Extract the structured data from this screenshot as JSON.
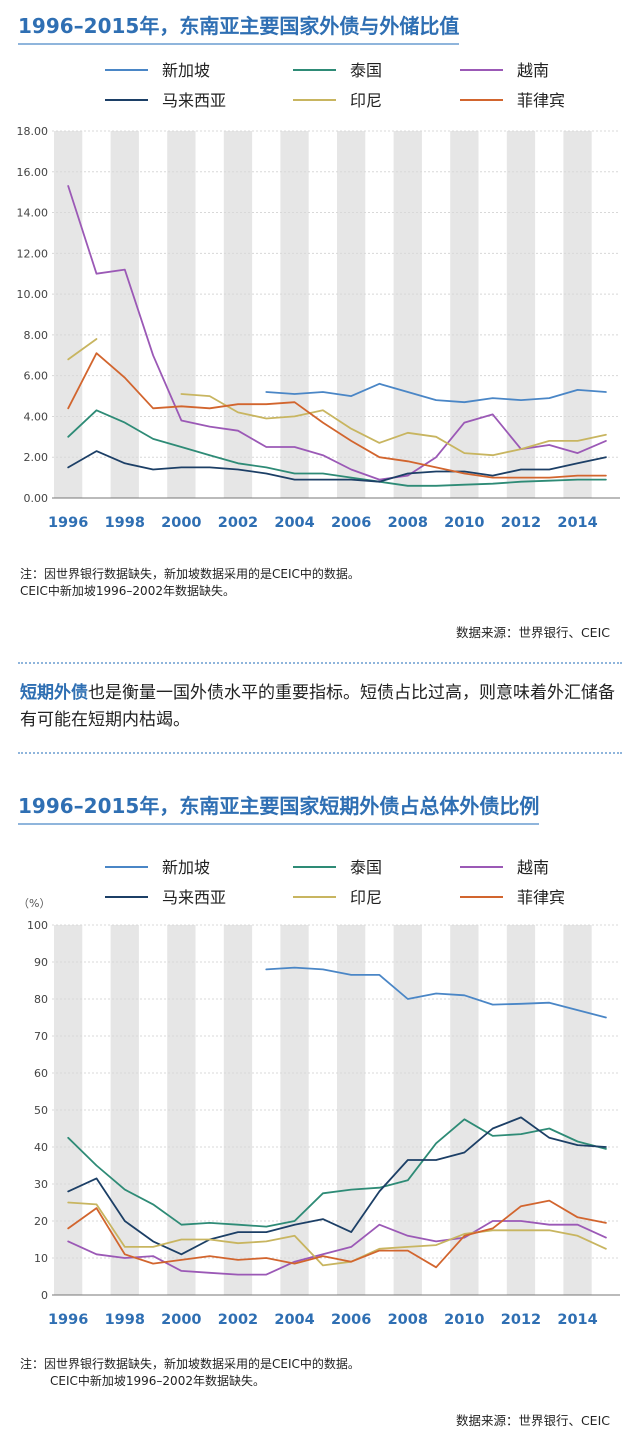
{
  "chart_data": [
    {
      "type": "line",
      "title": "1996-2015年，东南亚主要国家外债与外储比值",
      "x": [
        1996,
        1997,
        1998,
        1999,
        2000,
        2001,
        2002,
        2003,
        2004,
        2005,
        2006,
        2007,
        2008,
        2009,
        2010,
        2011,
        2012,
        2013,
        2014,
        2015
      ],
      "xticks": [
        "1996",
        "1998",
        "2000",
        "2002",
        "2004",
        "2006",
        "2008",
        "2010",
        "2012",
        "2014"
      ],
      "yticks": [
        "0.00",
        "2.00",
        "4.00",
        "6.00",
        "8.00",
        "10.00",
        "12.00",
        "14.00",
        "16.00",
        "18.00"
      ],
      "ylim": [
        0,
        18
      ],
      "ylabel": "",
      "series": [
        {
          "name": "新加坡",
          "color": "#4a86c6",
          "values": [
            null,
            null,
            null,
            null,
            null,
            null,
            null,
            5.2,
            5.1,
            5.2,
            5.0,
            5.6,
            5.2,
            4.8,
            4.7,
            4.9,
            4.8,
            4.9,
            5.3,
            5.2
          ]
        },
        {
          "name": "泰国",
          "color": "#2e8b76",
          "values": [
            3.0,
            4.3,
            3.7,
            2.9,
            2.5,
            2.1,
            1.7,
            1.5,
            1.2,
            1.2,
            1.0,
            0.8,
            0.6,
            0.6,
            0.65,
            0.7,
            0.8,
            0.85,
            0.9,
            0.9
          ]
        },
        {
          "name": "越南",
          "color": "#9b59b6",
          "values": [
            15.3,
            11.0,
            11.2,
            7.0,
            3.8,
            3.5,
            3.3,
            2.5,
            2.5,
            2.1,
            1.4,
            0.9,
            1.1,
            2.0,
            3.7,
            4.1,
            2.4,
            2.6,
            2.2,
            2.8
          ]
        },
        {
          "name": "马来西亚",
          "color": "#1c3f66",
          "values": [
            1.5,
            2.3,
            1.7,
            1.4,
            1.5,
            1.5,
            1.4,
            1.2,
            0.9,
            0.9,
            0.9,
            0.8,
            1.2,
            1.3,
            1.3,
            1.1,
            1.4,
            1.4,
            1.7,
            2.0
          ]
        },
        {
          "name": "印尼",
          "color": "#c8b560",
          "values": [
            6.8,
            7.8,
            null,
            null,
            5.1,
            5.0,
            4.2,
            3.9,
            4.0,
            4.3,
            3.4,
            2.7,
            3.2,
            3.0,
            2.2,
            2.1,
            2.4,
            2.8,
            2.8,
            3.1
          ]
        },
        {
          "name": "菲律宾",
          "color": "#d2652e",
          "values": [
            4.4,
            7.1,
            5.9,
            4.4,
            4.5,
            4.4,
            4.6,
            4.6,
            4.7,
            3.7,
            2.8,
            2.0,
            1.8,
            1.5,
            1.2,
            1.0,
            1.0,
            1.0,
            1.1,
            1.1
          ]
        }
      ]
    },
    {
      "type": "line",
      "title": "1996-2015年，东南亚主要国家短期外债占总体外债比例",
      "x": [
        1996,
        1997,
        1998,
        1999,
        2000,
        2001,
        2002,
        2003,
        2004,
        2005,
        2006,
        2007,
        2008,
        2009,
        2010,
        2011,
        2012,
        2013,
        2014,
        2015
      ],
      "xticks": [
        "1996",
        "1998",
        "2000",
        "2002",
        "2004",
        "2006",
        "2008",
        "2010",
        "2012",
        "2014"
      ],
      "yticks": [
        "0",
        "10",
        "20",
        "30",
        "40",
        "50",
        "60",
        "70",
        "80",
        "90",
        "100"
      ],
      "ylim": [
        0,
        100
      ],
      "ylabel": "（%）",
      "series": [
        {
          "name": "新加坡",
          "color": "#4a86c6",
          "values": [
            null,
            null,
            null,
            null,
            null,
            null,
            null,
            88,
            88.5,
            88,
            86.5,
            86.5,
            80,
            81.5,
            81,
            78.5,
            78.7,
            79,
            77,
            75
          ]
        },
        {
          "name": "泰国",
          "color": "#2e8b76",
          "values": [
            42.5,
            35,
            28.5,
            24.5,
            19,
            19.5,
            19,
            18.5,
            20,
            27.5,
            28.5,
            29,
            31,
            41,
            47.5,
            43,
            43.5,
            45,
            41.5,
            39.5
          ]
        },
        {
          "name": "越南",
          "color": "#9b59b6",
          "values": [
            14.5,
            11,
            10,
            10.5,
            6.5,
            6,
            5.5,
            5.5,
            9,
            11,
            13,
            19,
            16,
            14.5,
            15.5,
            20,
            20,
            19,
            19,
            15.5
          ]
        },
        {
          "name": "马来西亚",
          "color": "#1c3f66",
          "values": [
            28,
            31.5,
            20,
            14.5,
            11,
            15,
            17,
            17,
            19,
            20.5,
            17,
            28,
            36.5,
            36.5,
            38.5,
            45,
            48,
            42.5,
            40.5,
            40
          ]
        },
        {
          "name": "印尼",
          "color": "#c8b560",
          "values": [
            25,
            24.5,
            13,
            13,
            15,
            15,
            14,
            14.5,
            16,
            8,
            9,
            12.5,
            13,
            13.5,
            16.5,
            17.5,
            17.5,
            17.5,
            16,
            12.5
          ]
        },
        {
          "name": "菲律宾",
          "color": "#d2652e",
          "values": [
            18,
            23.5,
            11,
            8.5,
            9.5,
            10.5,
            9.5,
            10,
            8.5,
            10.5,
            9,
            12,
            12,
            7.5,
            16,
            18,
            24,
            25.5,
            21,
            19.5
          ]
        }
      ]
    }
  ],
  "section1": {
    "title": "1996–2015年，东南亚主要国家外债与外储比值",
    "note_line1": "注：因世界银行数据缺失，新加坡数据采用的是CEIC中的数据。",
    "note_line2": "CEIC中新加坡1996–2002年数据缺失。",
    "source": "数据来源：世界银行、CEIC"
  },
  "paragraph": {
    "highlight": "短期外债",
    "rest": "也是衡量一国外债水平的重要指标。短债占比过高，则意味着外汇储备有可能在短期内枯竭。"
  },
  "section2": {
    "title": "1996–2015年，东南亚主要国家短期外债占总体外债比例",
    "note_line1": "注：因世界银行数据缺失，新加坡数据采用的是CEIC中的数据。",
    "note_line2": "CEIC中新加坡1996–2002年数据缺失。",
    "source": "数据来源：世界银行、CEIC"
  }
}
